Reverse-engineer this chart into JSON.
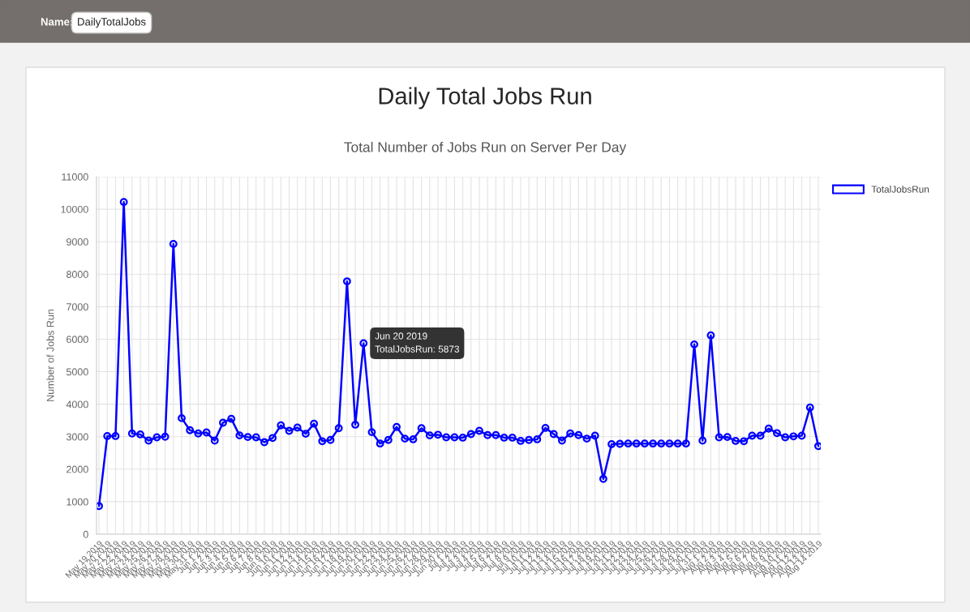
{
  "chart_data": {
    "type": "line",
    "title": "Daily Total Jobs Run",
    "subtitle": "Total Number of Jobs Run on Server Per Day",
    "ylabel": "Number of Jobs Run",
    "categories": [
      "May 19 2019",
      "May 20 2019",
      "May 21 2019",
      "May 22 2019",
      "May 23 2019",
      "May 24 2019",
      "May 25 2019",
      "May 26 2019",
      "May 27 2019",
      "May 28 2019",
      "May 29 2019",
      "May 30 2019",
      "May 31 2019",
      "Jun 1 2019",
      "Jun 2 2019",
      "Jun 3 2019",
      "Jun 4 2019",
      "Jun 5 2019",
      "Jun 6 2019",
      "Jun 7 2019",
      "Jun 8 2019",
      "Jun 9 2019",
      "Jun 10 2019",
      "Jun 11 2019",
      "Jun 12 2019",
      "Jun 13 2019",
      "Jun 14 2019",
      "Jun 15 2019",
      "Jun 16 2019",
      "Jun 17 2019",
      "Jun 18 2019",
      "Jun 19 2019",
      "Jun 20 2019",
      "Jun 21 2019",
      "Jun 22 2019",
      "Jun 23 2019",
      "Jun 24 2019",
      "Jun 25 2019",
      "Jun 26 2019",
      "Jun 27 2019",
      "Jun 28 2019",
      "Jun 29 2019",
      "Jun 30 2019",
      "Jul 1 2019",
      "Jul 2 2019",
      "Jul 3 2019",
      "Jul 4 2019",
      "Jul 5 2019",
      "Jul 6 2019",
      "Jul 7 2019",
      "Jul 8 2019",
      "Jul 9 2019",
      "Jul 10 2019",
      "Jul 11 2019",
      "Jul 12 2019",
      "Jul 13 2019",
      "Jul 14 2019",
      "Jul 15 2019",
      "Jul 16 2019",
      "Jul 17 2019",
      "Jul 18 2019",
      "Jul 19 2019",
      "Jul 20 2019",
      "Jul 21 2019",
      "Jul 22 2019",
      "Jul 23 2019",
      "Jul 24 2019",
      "Jul 25 2019",
      "Jul 26 2019",
      "Jul 27 2019",
      "Jul 28 2019",
      "Jul 29 2019",
      "Jul 30 2019",
      "Jul 31 2019",
      "Aug 1 2019",
      "Aug 2 2019",
      "Aug 3 2019",
      "Aug 4 2019",
      "Aug 5 2019",
      "Aug 6 2019",
      "Aug 7 2019",
      "Aug 8 2019",
      "Aug 9 2019",
      "Aug 10 2019",
      "Aug 11 2019",
      "Aug 12 2019",
      "Aug 13 2019",
      "Aug 14 2019"
    ],
    "series": [
      {
        "name": "TotalJobsRun",
        "color": "#0000ff",
        "values": [
          865,
          3020,
          3020,
          10220,
          3100,
          3070,
          2880,
          2980,
          3000,
          8930,
          3570,
          3200,
          3100,
          3130,
          2880,
          3430,
          3550,
          3040,
          2990,
          2980,
          2830,
          2960,
          3350,
          3180,
          3280,
          3090,
          3400,
          2860,
          2900,
          3260,
          7780,
          3370,
          5873,
          3140,
          2790,
          2900,
          3300,
          2940,
          2920,
          3260,
          3040,
          3060,
          2980,
          2980,
          2970,
          3080,
          3180,
          3050,
          3050,
          2970,
          2970,
          2870,
          2900,
          2920,
          3270,
          3080,
          2880,
          3100,
          3050,
          2940,
          3030,
          1700,
          2770,
          2780,
          2790,
          2790,
          2790,
          2790,
          2790,
          2790,
          2790,
          2790,
          5840,
          2880,
          6120,
          2980,
          2990,
          2870,
          2860,
          3030,
          3030,
          3250,
          3110,
          2980,
          3010,
          3030,
          3900,
          2710
        ]
      }
    ],
    "ylim": [
      0,
      11000
    ],
    "yticks": [
      0,
      1000,
      2000,
      3000,
      4000,
      5000,
      6000,
      7000,
      8000,
      9000,
      10000,
      11000
    ],
    "grid": true,
    "legend": "top right",
    "marker": "circle",
    "line_style": "solid",
    "annotations": [
      "Name:",
      "DailyTotalJobs",
      {
        "text": "Jun 20 2019\nTotalJobsRun: 5873",
        "x": "Jun 20 2019",
        "y": 5873
      }
    ]
  }
}
